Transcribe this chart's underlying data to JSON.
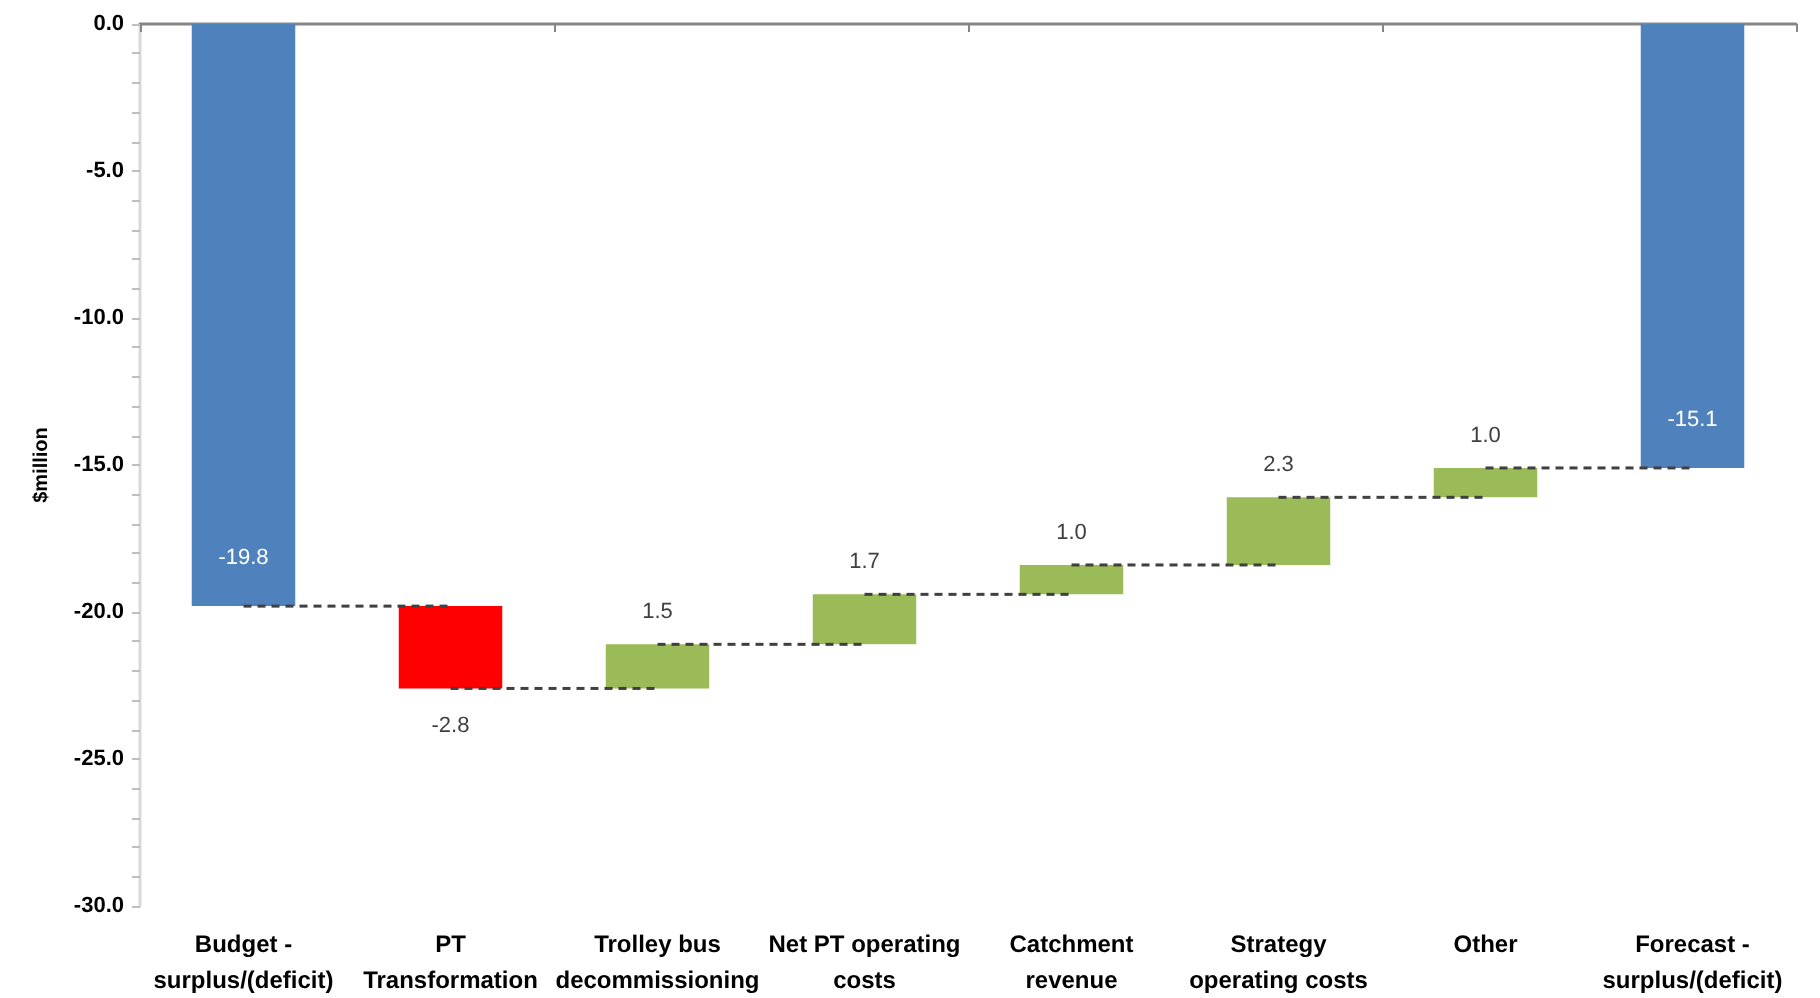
{
  "chart_data": {
    "type": "bar",
    "ylabel": "$million",
    "categories": [
      "Budget - surplus/(deficit)",
      "PT Transformation",
      "Trolley bus decommissioning",
      "Net PT operating costs",
      "Catchment revenue",
      "Strategy operating costs",
      "Other",
      "Forecast - surplus/(deficit)"
    ],
    "values": [
      -19.8,
      -2.8,
      1.5,
      1.7,
      1.0,
      2.3,
      1.0,
      -15.1
    ],
    "base": [
      0,
      -19.8,
      -22.6,
      -21.1,
      -19.4,
      -18.4,
      -16.1,
      0
    ],
    "colors": [
      "#4f81bd",
      "#ff0000",
      "#9bbb59",
      "#9bbb59",
      "#9bbb59",
      "#9bbb59",
      "#9bbb59",
      "#4f81bd"
    ],
    "value_labels": [
      "-19.8",
      "-2.8",
      "1.5",
      "1.7",
      "1.0",
      "2.3",
      "1.0",
      "-15.1"
    ],
    "ylim": [
      -30,
      0
    ],
    "yticks": [
      {
        "value": -30,
        "label": "-30.0"
      },
      {
        "value": -29,
        "label": null
      },
      {
        "value": -28,
        "label": null
      },
      {
        "value": -27,
        "label": null
      },
      {
        "value": -26,
        "label": null
      },
      {
        "value": -25,
        "label": "-25.0"
      },
      {
        "value": -24,
        "label": null
      },
      {
        "value": -23,
        "label": null
      },
      {
        "value": -22,
        "label": null
      },
      {
        "value": -21,
        "label": null
      },
      {
        "value": -20,
        "label": "-20.0"
      },
      {
        "value": -19,
        "label": null
      },
      {
        "value": -18,
        "label": null
      },
      {
        "value": -17,
        "label": null
      },
      {
        "value": -16,
        "label": null
      },
      {
        "value": -15,
        "label": "-15.0"
      },
      {
        "value": -14,
        "label": null
      },
      {
        "value": -13,
        "label": null
      },
      {
        "value": -12,
        "label": null
      },
      {
        "value": -11,
        "label": null
      },
      {
        "value": -10,
        "label": "-10.0"
      },
      {
        "value": -9,
        "label": null
      },
      {
        "value": -8,
        "label": null
      },
      {
        "value": -7,
        "label": null
      },
      {
        "value": -6,
        "label": null
      },
      {
        "value": -5,
        "label": "-5.0"
      },
      {
        "value": -4,
        "label": null
      },
      {
        "value": -3,
        "label": null
      },
      {
        "value": -2,
        "label": null
      },
      {
        "value": -1,
        "label": null
      },
      {
        "value": 0,
        "label": "0.0"
      }
    ]
  }
}
